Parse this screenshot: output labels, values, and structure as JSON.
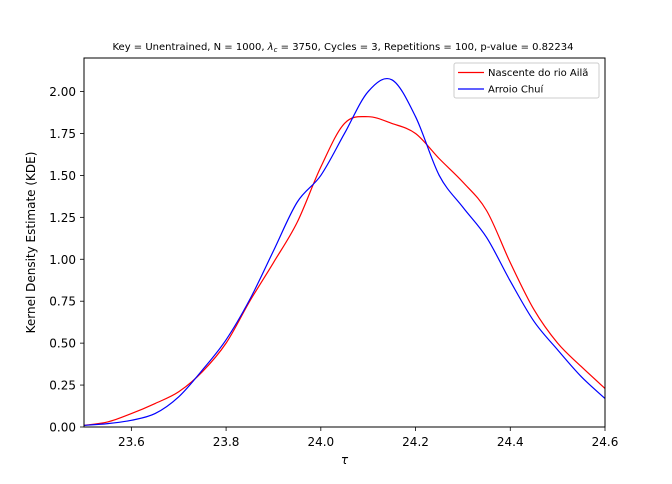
{
  "chart_data": {
    "type": "line",
    "title": "Key = Unentrained, N = 1000, λc = 3750, Cycles = 3, Repetitions = 100, p-value = 0.82234",
    "title_parts": {
      "prefix": "Key = Unentrained, N = 1000, ",
      "lambda_symbol": "λ",
      "lambda_subscript": "c",
      "suffix": " = 3750, Cycles = 3, Repetitions = 100, p-value = 0.82234"
    },
    "xlabel": "τ",
    "ylabel": "Kernel Density Estimate (KDE)",
    "xlim": [
      23.5,
      24.6
    ],
    "ylim": [
      0.0,
      2.2
    ],
    "xticks": [
      23.6,
      23.8,
      24.0,
      24.2,
      24.4,
      24.6
    ],
    "xtick_labels": [
      "23.6",
      "23.8",
      "24.0",
      "24.2",
      "24.4",
      "24.6"
    ],
    "yticks": [
      0.0,
      0.25,
      0.5,
      0.75,
      1.0,
      1.25,
      1.5,
      1.75,
      2.0
    ],
    "ytick_labels": [
      "0.00",
      "0.25",
      "0.50",
      "0.75",
      "1.00",
      "1.25",
      "1.50",
      "1.75",
      "2.00"
    ],
    "grid": false,
    "legend_position": "top-right",
    "series": [
      {
        "name": "Nascente do rio Ailã",
        "color": "#ff0000",
        "x": [
          23.5,
          23.55,
          23.6,
          23.65,
          23.7,
          23.75,
          23.8,
          23.85,
          23.9,
          23.95,
          24.0,
          24.05,
          24.1,
          24.15,
          24.2,
          24.25,
          24.3,
          24.35,
          24.4,
          24.45,
          24.5,
          24.55,
          24.6
        ],
        "y": [
          0.01,
          0.03,
          0.08,
          0.14,
          0.21,
          0.33,
          0.5,
          0.75,
          0.98,
          1.22,
          1.55,
          1.81,
          1.85,
          1.81,
          1.75,
          1.6,
          1.46,
          1.29,
          0.98,
          0.7,
          0.5,
          0.36,
          0.23
        ]
      },
      {
        "name": "Arroio Chuí",
        "color": "#0000ff",
        "x": [
          23.5,
          23.55,
          23.6,
          23.65,
          23.7,
          23.75,
          23.8,
          23.85,
          23.9,
          23.95,
          24.0,
          24.05,
          24.1,
          24.15,
          24.2,
          24.25,
          24.3,
          24.35,
          24.4,
          24.45,
          24.5,
          24.55,
          24.6
        ],
        "y": [
          0.01,
          0.02,
          0.04,
          0.08,
          0.18,
          0.34,
          0.52,
          0.76,
          1.05,
          1.34,
          1.5,
          1.75,
          2.0,
          2.07,
          1.85,
          1.5,
          1.31,
          1.13,
          0.87,
          0.63,
          0.46,
          0.3,
          0.17
        ]
      }
    ]
  }
}
